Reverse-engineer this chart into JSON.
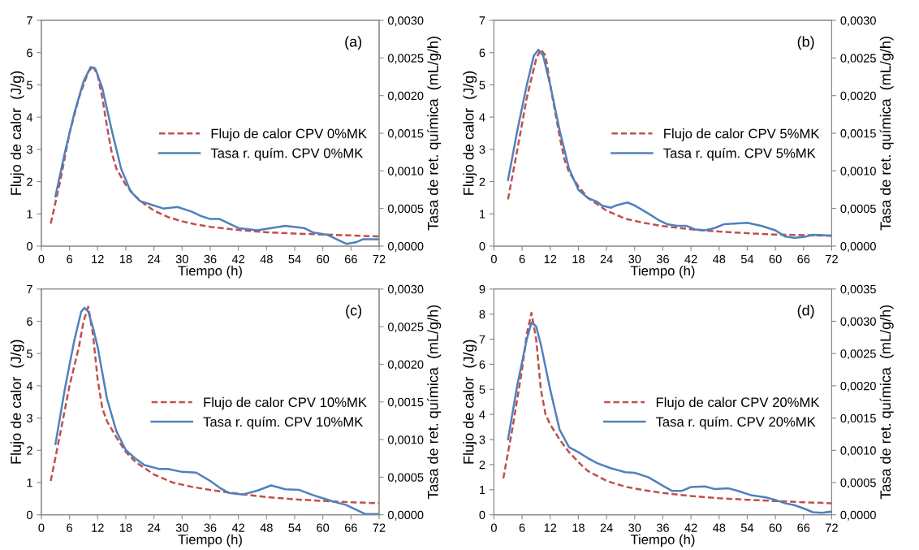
{
  "chart_data": [
    {
      "type": "line",
      "xlabel": "Tiempo (h)",
      "ylabel": "Flujo de calor  (J/g)",
      "y2label": "Tasa de ret. química  (mL/g/h)",
      "annotations": [
        "(a)"
      ],
      "legend": "right",
      "grid": false,
      "xlim": [
        0,
        72
      ],
      "xticks": [
        0,
        6,
        12,
        18,
        24,
        30,
        36,
        42,
        48,
        54,
        60,
        66,
        72
      ],
      "ylim": [
        0,
        7
      ],
      "yticks": [
        0,
        1,
        2,
        3,
        4,
        5,
        6,
        7
      ],
      "y2lim": [
        0,
        0.003
      ],
      "y2ticks": [
        {
          "value": 0,
          "label": "0,0000"
        },
        {
          "value": 0.0005,
          "label": "0,0005"
        },
        {
          "value": 0.001,
          "label": "0,0010"
        },
        {
          "value": 0.0015,
          "label": "0,0015"
        },
        {
          "value": 0.002,
          "label": "0,0020"
        },
        {
          "value": 0.0025,
          "label": "0,0025"
        },
        {
          "value": 0.003,
          "label": "0,0030"
        }
      ],
      "series": [
        {
          "name": "Flujo de calor CPV 0%MK",
          "color": "#c0504d",
          "line_style": "dashed",
          "x": [
            2,
            4,
            6,
            8,
            10,
            11,
            12,
            13,
            14,
            15,
            16,
            18,
            20,
            22,
            24,
            27,
            30,
            33,
            36,
            42,
            48,
            54,
            60,
            66,
            72
          ],
          "values": [
            0.7,
            2.0,
            3.5,
            4.6,
            5.4,
            5.58,
            5.3,
            4.6,
            3.7,
            2.9,
            2.4,
            1.9,
            1.55,
            1.3,
            1.1,
            0.9,
            0.77,
            0.67,
            0.6,
            0.5,
            0.43,
            0.39,
            0.36,
            0.33,
            0.3
          ]
        },
        {
          "name": "Tasa r. quím. CPV 0%MK",
          "color": "#4f81bd",
          "line_style": "solid",
          "axis": "y2",
          "x": [
            3,
            5,
            7,
            9,
            10.5,
            11.5,
            13,
            15,
            17,
            19,
            21,
            24,
            26,
            29,
            32,
            34,
            36,
            38,
            40,
            42,
            46,
            49,
            52,
            56,
            58,
            61,
            63,
            65,
            67,
            68.5,
            72
          ],
          "values": [
            0.00066,
            0.00124,
            0.00176,
            0.00219,
            0.00238,
            0.00236,
            0.0021,
            0.00154,
            0.00103,
            0.00073,
            0.0006,
            0.00054,
            0.0005,
            0.00052,
            0.00046,
            0.0004,
            0.00036,
            0.00036,
            0.0003,
            0.00024,
            0.00021,
            0.00024,
            0.00027,
            0.00024,
            0.00018,
            0.00015,
            9e-05,
            3e-05,
            5e-05,
            9e-05,
            9e-05
          ]
        }
      ]
    },
    {
      "type": "line",
      "xlabel": "Tiempo (h)",
      "ylabel": "Flujo de calor  (J/g)",
      "y2label": "Tasa de ret. química  (mL/g/h)",
      "annotations": [
        "(b)"
      ],
      "legend": "right",
      "grid": false,
      "xlim": [
        0,
        72
      ],
      "xticks": [
        0,
        6,
        12,
        18,
        24,
        30,
        36,
        42,
        48,
        54,
        60,
        66,
        72
      ],
      "ylim": [
        0,
        7
      ],
      "yticks": [
        0,
        1,
        2,
        3,
        4,
        5,
        6,
        7
      ],
      "y2lim": [
        0,
        0.003
      ],
      "y2ticks": [
        {
          "value": 0,
          "label": "0,0000"
        },
        {
          "value": 0.0005,
          "label": "0,0005"
        },
        {
          "value": 0.001,
          "label": "0,0010"
        },
        {
          "value": 0.0015,
          "label": "0,0015"
        },
        {
          "value": 0.002,
          "label": "0,0020"
        },
        {
          "value": 0.0025,
          "label": "0,0025"
        },
        {
          "value": 0.003,
          "label": "0,0030"
        }
      ],
      "series": [
        {
          "name": "Flujo de calor CPV 5%MK",
          "color": "#c0504d",
          "line_style": "dashed",
          "x": [
            3,
            5,
            7,
            9,
            10,
            11,
            12,
            13,
            14,
            15,
            16,
            18,
            20,
            24,
            28,
            32,
            36,
            42,
            48,
            54,
            60,
            66,
            72
          ],
          "values": [
            1.45,
            3.0,
            4.6,
            5.8,
            6.1,
            5.9,
            5.0,
            4.2,
            3.4,
            2.7,
            2.3,
            1.85,
            1.5,
            1.1,
            0.85,
            0.72,
            0.62,
            0.52,
            0.45,
            0.4,
            0.36,
            0.34,
            0.32
          ]
        },
        {
          "name": "Tasa r. quím. CPV 5%MK",
          "color": "#4f81bd",
          "line_style": "solid",
          "axis": "y2",
          "x": [
            3,
            5,
            7,
            8.5,
            9.5,
            10.5,
            12,
            14,
            16,
            18,
            20,
            22,
            23,
            25,
            26,
            28.5,
            30,
            33,
            35,
            37,
            39,
            41,
            43,
            45,
            47,
            49,
            54,
            57,
            60,
            62,
            64,
            66,
            68,
            72
          ],
          "values": [
            0.00088,
            0.00154,
            0.00214,
            0.00253,
            0.00261,
            0.00253,
            0.00214,
            0.00154,
            0.00103,
            0.00075,
            0.00064,
            0.00059,
            0.00054,
            0.00051,
            0.00054,
            0.00058,
            0.00054,
            0.00043,
            0.00035,
            0.00029,
            0.00027,
            0.00027,
            0.00022,
            0.00021,
            0.00024,
            0.00029,
            0.00031,
            0.00027,
            0.00021,
            0.00013,
            0.00011,
            0.00012,
            0.00015,
            0.00014
          ]
        }
      ]
    },
    {
      "type": "line",
      "xlabel": "Tiempo (h)",
      "ylabel": "Flujo de calor  (J/g)",
      "y2label": "Tasa de ret. química  (mL/g/h)",
      "annotations": [
        "(c)"
      ],
      "legend": "right",
      "grid": false,
      "xlim": [
        0,
        72
      ],
      "xticks": [
        0,
        6,
        12,
        18,
        24,
        30,
        36,
        42,
        48,
        54,
        60,
        66,
        72
      ],
      "ylim": [
        0,
        7
      ],
      "yticks": [
        0,
        1,
        2,
        3,
        4,
        5,
        6,
        7
      ],
      "y2lim": [
        0,
        0.003
      ],
      "y2ticks": [
        {
          "value": 0,
          "label": "0,0000"
        },
        {
          "value": 0.0005,
          "label": "0,0005"
        },
        {
          "value": 0.001,
          "label": "0,0010"
        },
        {
          "value": 0.0015,
          "label": "0,0015"
        },
        {
          "value": 0.002,
          "label": "0,0020"
        },
        {
          "value": 0.0025,
          "label": "0,0025"
        },
        {
          "value": 0.003,
          "label": "0,0030"
        }
      ],
      "series": [
        {
          "name": "Flujo de calor CPV 10%MK",
          "color": "#c0504d",
          "line_style": "dashed",
          "x": [
            2,
            4,
            6,
            8,
            9,
            10,
            11,
            12,
            13,
            14,
            16,
            18,
            20,
            24,
            28,
            32,
            36,
            42,
            48,
            54,
            60,
            66,
            72
          ],
          "values": [
            1.05,
            2.5,
            4.0,
            5.2,
            6.0,
            6.45,
            5.6,
            4.2,
            3.3,
            2.9,
            2.4,
            1.95,
            1.65,
            1.25,
            1.0,
            0.87,
            0.77,
            0.65,
            0.55,
            0.48,
            0.43,
            0.39,
            0.36
          ]
        },
        {
          "name": "Tasa r. quím. CPV 10%MK",
          "color": "#4f81bd",
          "line_style": "solid",
          "axis": "y2",
          "x": [
            3,
            5,
            7,
            8.5,
            9.2,
            10,
            11,
            12,
            14,
            16,
            18,
            20,
            22,
            25,
            27,
            30,
            33,
            36,
            38,
            40,
            43,
            46,
            49,
            52,
            55,
            58,
            60,
            62,
            65,
            67,
            69,
            72
          ],
          "values": [
            0.00094,
            0.00167,
            0.00231,
            0.0027,
            0.00275,
            0.0027,
            0.00249,
            0.00223,
            0.00154,
            0.00111,
            0.00086,
            0.00075,
            0.00066,
            0.00061,
            0.00061,
            0.00057,
            0.00056,
            0.00045,
            0.00036,
            0.00029,
            0.00027,
            0.00032,
            0.00039,
            0.00034,
            0.00033,
            0.00026,
            0.00022,
            0.00018,
            0.00013,
            7e-05,
            1e-05,
            1e-05
          ]
        }
      ]
    },
    {
      "type": "line",
      "xlabel": "Tiempo (h)",
      "ylabel": "Flujo de calor  (J/g)",
      "y2label": "Tasa de ret. química  (mL/g/h)",
      "annotations": [
        "(d)"
      ],
      "legend": "right",
      "grid": false,
      "xlim": [
        0,
        72
      ],
      "xticks": [
        0,
        6,
        12,
        18,
        24,
        30,
        36,
        42,
        48,
        54,
        60,
        66,
        72
      ],
      "ylim": [
        0,
        9
      ],
      "yticks": [
        0,
        1,
        2,
        3,
        4,
        5,
        6,
        7,
        8,
        9
      ],
      "y2lim": [
        0,
        0.0035
      ],
      "y2ticks": [
        {
          "value": 0,
          "label": "0,0000"
        },
        {
          "value": 0.0005,
          "label": "0,0005"
        },
        {
          "value": 0.001,
          "label": "0,0010"
        },
        {
          "value": 0.0015,
          "label": "0,0015"
        },
        {
          "value": 0.002,
          "label": "0,0020"
        },
        {
          "value": 0.0025,
          "label": "0,0025"
        },
        {
          "value": 0.003,
          "label": "0,0030"
        },
        {
          "value": 0.0035,
          "label": "0,0035"
        }
      ],
      "series": [
        {
          "name": "Flujo de calor CPV 20%MK",
          "color": "#c0504d",
          "line_style": "dashed",
          "x": [
            2,
            4,
            6,
            7,
            8,
            9,
            10,
            11,
            12,
            14,
            16,
            18,
            20,
            24,
            28,
            32,
            36,
            42,
            48,
            54,
            60,
            66,
            72
          ],
          "values": [
            1.45,
            3.5,
            5.8,
            7.2,
            8.05,
            7.0,
            5.0,
            4.0,
            3.6,
            3.0,
            2.5,
            2.1,
            1.75,
            1.35,
            1.12,
            0.98,
            0.87,
            0.75,
            0.66,
            0.6,
            0.55,
            0.5,
            0.46
          ]
        },
        {
          "name": "Tasa r. quím. CPV 20%MK",
          "color": "#4f81bd",
          "line_style": "solid",
          "axis": "y2",
          "x": [
            3,
            5,
            7,
            8,
            9,
            10,
            12,
            14,
            16,
            18,
            20,
            22,
            25,
            28,
            30,
            33,
            36,
            38,
            40,
            42,
            45,
            47,
            50,
            52,
            55,
            58,
            60,
            62,
            64,
            66,
            68,
            70,
            72
          ],
          "values": [
            0.00117,
            0.00202,
            0.00272,
            0.00298,
            0.00292,
            0.00264,
            0.00194,
            0.00132,
            0.00105,
            0.00097,
            0.00088,
            0.0008,
            0.00072,
            0.00066,
            0.00065,
            0.00058,
            0.00045,
            0.00037,
            0.00037,
            0.00043,
            0.00044,
            0.0004,
            0.00041,
            0.00037,
            0.0003,
            0.00027,
            0.00023,
            0.00018,
            0.00015,
            0.0001,
            4e-05,
            3e-05,
            5e-05
          ]
        }
      ]
    }
  ]
}
